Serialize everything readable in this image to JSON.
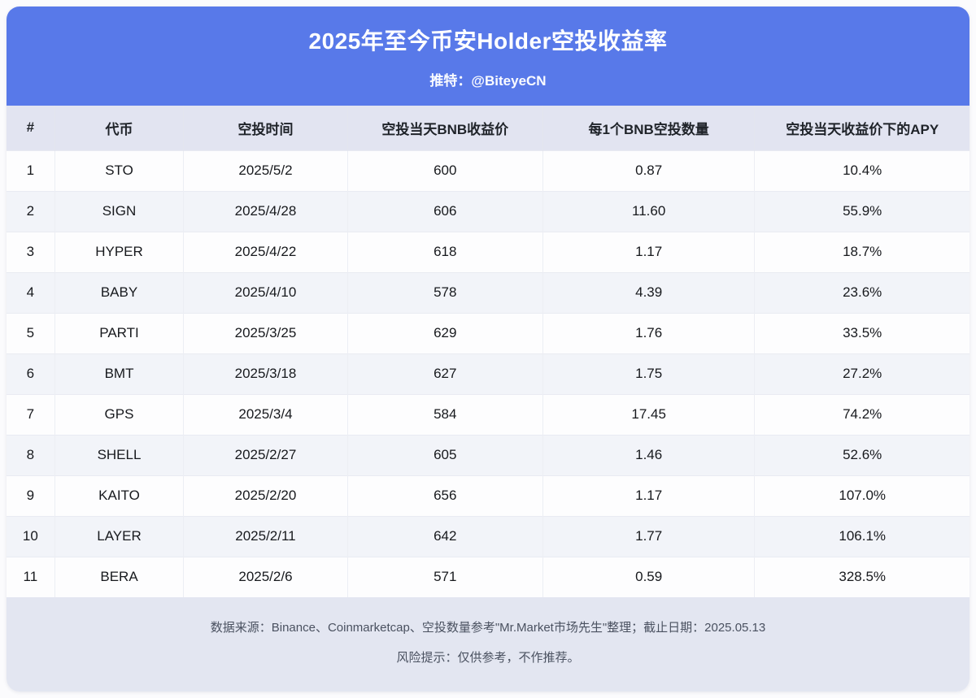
{
  "banner": {
    "title": "2025年至今币安Holder空投收益率",
    "subtitle": "推特：@BiteyeCN"
  },
  "chart_data": {
    "type": "table",
    "title": "2025年至今币安Holder空投收益率",
    "columns": [
      "#",
      "代币",
      "空投时间",
      "空投当天BNB收益价",
      "每1个BNB空投数量",
      "空投当天收益价下的APY"
    ],
    "rows": [
      [
        "1",
        "STO",
        "2025/5/2",
        "600",
        "0.87",
        "10.4%"
      ],
      [
        "2",
        "SIGN",
        "2025/4/28",
        "606",
        "11.60",
        "55.9%"
      ],
      [
        "3",
        "HYPER",
        "2025/4/22",
        "618",
        "1.17",
        "18.7%"
      ],
      [
        "4",
        "BABY",
        "2025/4/10",
        "578",
        "4.39",
        "23.6%"
      ],
      [
        "5",
        "PARTI",
        "2025/3/25",
        "629",
        "1.76",
        "33.5%"
      ],
      [
        "6",
        "BMT",
        "2025/3/18",
        "627",
        "1.75",
        "27.2%"
      ],
      [
        "7",
        "GPS",
        "2025/3/4",
        "584",
        "17.45",
        "74.2%"
      ],
      [
        "8",
        "SHELL",
        "2025/2/27",
        "605",
        "1.46",
        "52.6%"
      ],
      [
        "9",
        "KAITO",
        "2025/2/20",
        "656",
        "1.17",
        "107.0%"
      ],
      [
        "10",
        "LAYER",
        "2025/2/11",
        "642",
        "1.77",
        "106.1%"
      ],
      [
        "11",
        "BERA",
        "2025/2/6",
        "571",
        "0.59",
        "328.5%"
      ]
    ]
  },
  "footer": {
    "source_line": "数据来源：Binance、Coinmarketcap、空投数量参考\"Mr.Market市场先生\"整理；截止日期：2025.05.13",
    "risk_line": "风险提示：仅供参考，不作推荐。"
  },
  "colors": {
    "banner_bg": "#5879E9",
    "table_header_bg": "#E2E4F1",
    "row_odd_bg": "#FDFDFE",
    "row_even_bg": "#F2F4F9",
    "footer_bg": "#E3E6F1"
  }
}
